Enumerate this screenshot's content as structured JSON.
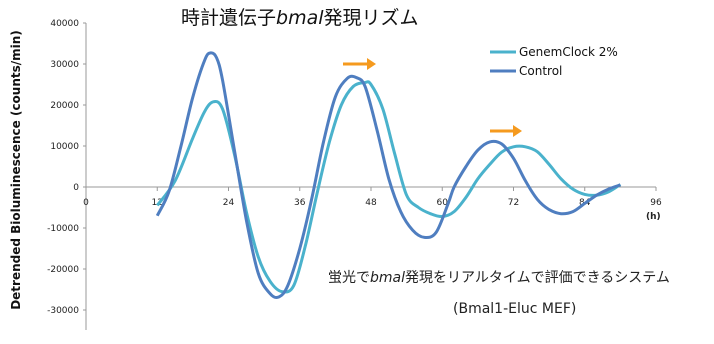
{
  "chart_data": {
    "type": "line",
    "title_parts": [
      "時計遺伝子",
      "bmal",
      "発現リズム"
    ],
    "ylabel": "Detrended Bioluminescence (counts/min)",
    "xunit": "(h)",
    "xlim": [
      0,
      96
    ],
    "ylim": [
      -35000,
      40000
    ],
    "xticks": [
      0,
      12,
      24,
      36,
      48,
      60,
      72,
      84,
      96
    ],
    "yticks": [
      40000,
      30000,
      20000,
      10000,
      0,
      -10000,
      -20000,
      -30000
    ],
    "legend_position": "top-right",
    "grid": false,
    "series": [
      {
        "name": "GenemClock 2%",
        "color": "#4ab2cc",
        "x": [
          12,
          15,
          18,
          20,
          21.5,
          23,
          25,
          27,
          29,
          31,
          33,
          35,
          37,
          39,
          41,
          43,
          45,
          47,
          48,
          50,
          52,
          54,
          56,
          58,
          60,
          62,
          64,
          66,
          68,
          70,
          72,
          74,
          76,
          78,
          80,
          82,
          84,
          86,
          88,
          90
        ],
        "y": [
          -4500,
          1500,
          12000,
          18500,
          20800,
          19000,
          8000,
          -6000,
          -17000,
          -23000,
          -25500,
          -24000,
          -14000,
          -1000,
          11000,
          20000,
          24500,
          25500,
          25000,
          19000,
          8000,
          -2000,
          -5000,
          -6500,
          -7200,
          -6000,
          -2500,
          2000,
          5500,
          8500,
          9800,
          9800,
          8600,
          5500,
          2000,
          -500,
          -1800,
          -2000,
          -1200,
          600
        ]
      },
      {
        "name": "Control",
        "color": "#4f7ec0",
        "x": [
          12,
          14,
          16,
          18,
          20,
          21,
          22,
          23,
          25,
          27,
          29,
          31,
          32.5,
          34,
          36,
          38,
          40,
          42,
          44,
          45.5,
          47,
          49,
          51,
          53,
          55,
          57,
          59,
          61,
          62,
          64,
          66,
          68,
          70,
          72,
          74,
          76,
          78,
          80,
          82,
          84,
          86,
          88,
          90
        ],
        "y": [
          -7000,
          -1000,
          10000,
          22000,
          31000,
          32700,
          31500,
          26000,
          9000,
          -8000,
          -21000,
          -26000,
          -26800,
          -24000,
          -15000,
          -3000,
          11000,
          22000,
          26500,
          26700,
          24500,
          14000,
          2000,
          -6000,
          -10500,
          -12300,
          -11000,
          -4000,
          0,
          5000,
          9000,
          11000,
          10500,
          7000,
          1500,
          -3000,
          -5500,
          -6500,
          -6000,
          -4000,
          -2000,
          -500,
          500
        ]
      }
    ],
    "arrows_color": "#f59a1e",
    "annotation_line1_parts": [
      "蛍光で",
      "bmal",
      "発現をリアルタイムで評価できるシステム"
    ],
    "annotation_line2": "(Bmal1-Eluc MEF)"
  }
}
